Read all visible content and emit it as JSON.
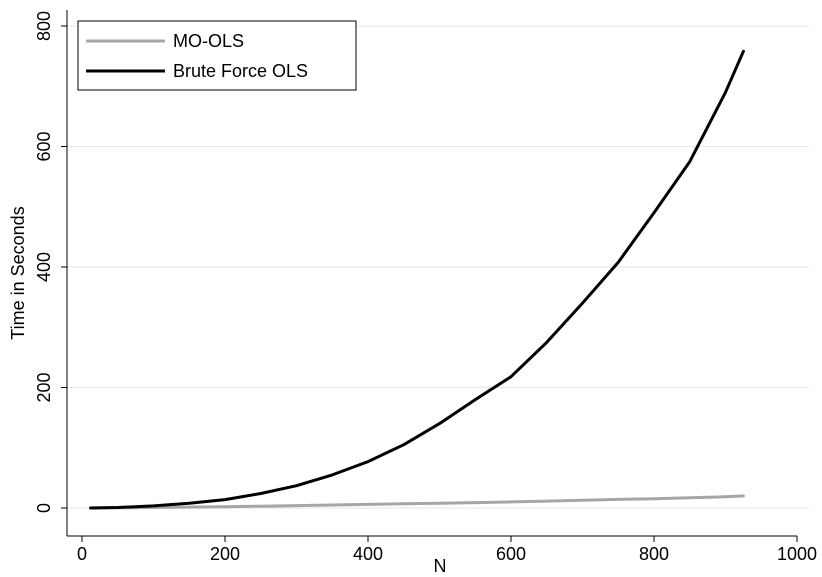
{
  "chart_data": {
    "type": "line",
    "title": "",
    "xlabel": "N",
    "ylabel": "Time in Seconds",
    "xlim": [
      0,
      1000
    ],
    "ylim": [
      0,
      800
    ],
    "xticks": [
      "0",
      "200",
      "400",
      "600",
      "800",
      "1000"
    ],
    "yticks": [
      "0",
      "200",
      "400",
      "600",
      "800"
    ],
    "grid": "horizontal",
    "legend_position": "top-left",
    "series": [
      {
        "name": "MO-OLS",
        "color": "#a6a6a6",
        "x": [
          12,
          50,
          100,
          150,
          200,
          250,
          300,
          350,
          400,
          450,
          500,
          550,
          600,
          650,
          700,
          750,
          800,
          850,
          900,
          925
        ],
        "y": [
          0.1,
          0.4,
          0.8,
          1.5,
          2.2,
          3.0,
          4.0,
          5.0,
          6.0,
          7.0,
          8.0,
          9.0,
          10.2,
          11.5,
          12.8,
          14.2,
          15.5,
          17.0,
          18.8,
          20.0
        ]
      },
      {
        "name": "Brute Force OLS",
        "color": "#000000",
        "x": [
          12,
          50,
          100,
          150,
          200,
          250,
          300,
          350,
          400,
          450,
          500,
          550,
          600,
          650,
          700,
          750,
          800,
          850,
          900,
          925
        ],
        "y": [
          0.0,
          0.8,
          3.5,
          8.0,
          14.0,
          24.0,
          37.0,
          55.0,
          77.0,
          105.0,
          140.0,
          180.0,
          218.0,
          275.0,
          340.0,
          408.0,
          490.0,
          575.0,
          690.0,
          758.0
        ]
      }
    ]
  }
}
